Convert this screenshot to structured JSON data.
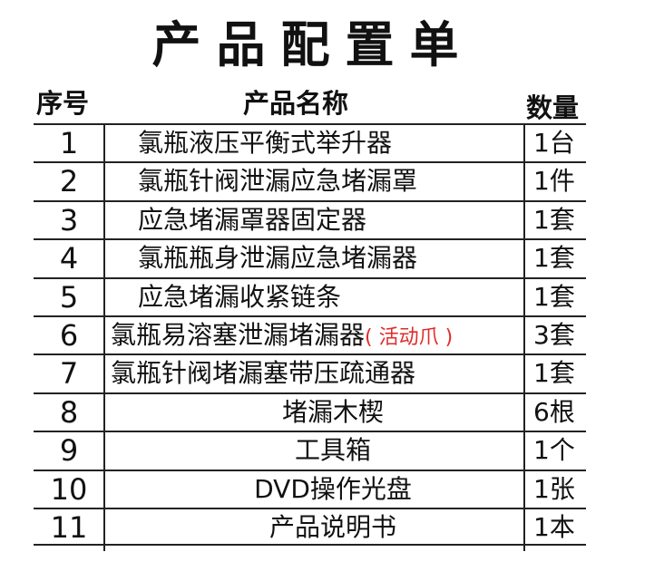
{
  "title": "产品配置单",
  "headers": {
    "no": "序号",
    "name": "产品名称",
    "qty": "数量"
  },
  "accent_color": "#e02a2a",
  "rows": [
    {
      "no": "1",
      "name": "氯瓶液压平衡式举升器",
      "note": "",
      "qty": "1台"
    },
    {
      "no": "2",
      "name": "氯瓶针阀泄漏应急堵漏罩",
      "note": "",
      "qty": "1件"
    },
    {
      "no": "3",
      "name": "应急堵漏罩器固定器",
      "note": "",
      "qty": "1套"
    },
    {
      "no": "4",
      "name": "氯瓶瓶身泄漏应急堵漏器",
      "note": "",
      "qty": "1套"
    },
    {
      "no": "5",
      "name": "应急堵漏收紧链条",
      "note": "",
      "qty": "1套"
    },
    {
      "no": "6",
      "name": "氯瓶易溶塞泄漏堵漏器",
      "note": "( 活动爪 )",
      "qty": "3套"
    },
    {
      "no": "7",
      "name": "氯瓶针阀堵漏塞带压疏通器",
      "note": "",
      "qty": "1套"
    },
    {
      "no": "8",
      "name": "堵漏木楔",
      "note": "",
      "qty": "6根"
    },
    {
      "no": "9",
      "name": "工具箱",
      "note": "",
      "qty": "1个"
    },
    {
      "no": "10",
      "name": "DVD操作光盘",
      "note": "",
      "qty": "1张"
    },
    {
      "no": "11",
      "name": "产品说明书",
      "note": "",
      "qty": "1本"
    }
  ]
}
